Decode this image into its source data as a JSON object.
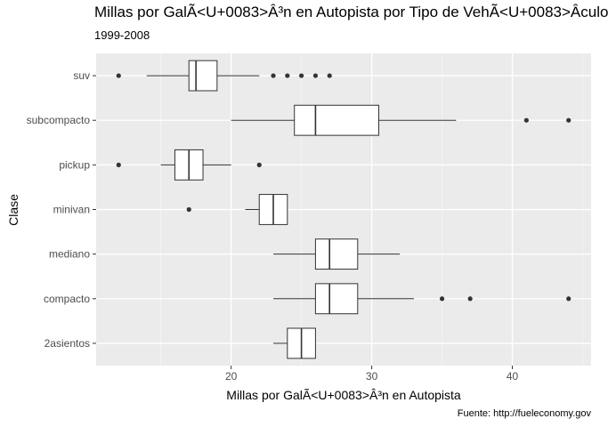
{
  "chart_data": {
    "type": "boxplot",
    "orientation": "horizontal",
    "title": "Millas por GalÃ<U+0083>Â³n en Autopista por Tipo de VehÃ<U+0083>Â­culo",
    "subtitle": "1999-2008",
    "caption": "Fuente: http://fueleconomy.gov",
    "xlabel": "Millas por GalÃ<U+0083>Â³n en Autopista",
    "ylabel": "Clase",
    "xlim": [
      10.4,
      45.6
    ],
    "xticks": [
      20,
      30,
      40
    ],
    "grid": true,
    "categories": [
      "2asientos",
      "compacto",
      "mediano",
      "minivan",
      "pickup",
      "subcompacto",
      "suv"
    ],
    "boxes": [
      {
        "name": "2asientos",
        "whisker_low": 23,
        "q1": 24,
        "median": 25,
        "q3": 26,
        "whisker_high": 26,
        "outliers": []
      },
      {
        "name": "compacto",
        "whisker_low": 23,
        "q1": 26,
        "median": 27,
        "q3": 29,
        "whisker_high": 33,
        "outliers": [
          35,
          37,
          44
        ]
      },
      {
        "name": "mediano",
        "whisker_low": 23,
        "q1": 26,
        "median": 27,
        "q3": 29,
        "whisker_high": 32,
        "outliers": []
      },
      {
        "name": "minivan",
        "whisker_low": 21,
        "q1": 22,
        "median": 23,
        "q3": 24,
        "whisker_high": 24,
        "outliers": [
          17
        ]
      },
      {
        "name": "pickup",
        "whisker_low": 15,
        "q1": 16,
        "median": 17,
        "q3": 18,
        "whisker_high": 20,
        "outliers": [
          12,
          22
        ]
      },
      {
        "name": "subcompacto",
        "whisker_low": 20,
        "q1": 24.5,
        "median": 26,
        "q3": 30.5,
        "whisker_high": 36,
        "outliers": [
          41,
          44
        ]
      },
      {
        "name": "suv",
        "whisker_low": 14,
        "q1": 17,
        "median": 17.5,
        "q3": 19,
        "whisker_high": 22,
        "outliers": [
          12,
          23,
          24,
          25,
          26,
          27
        ]
      }
    ]
  }
}
